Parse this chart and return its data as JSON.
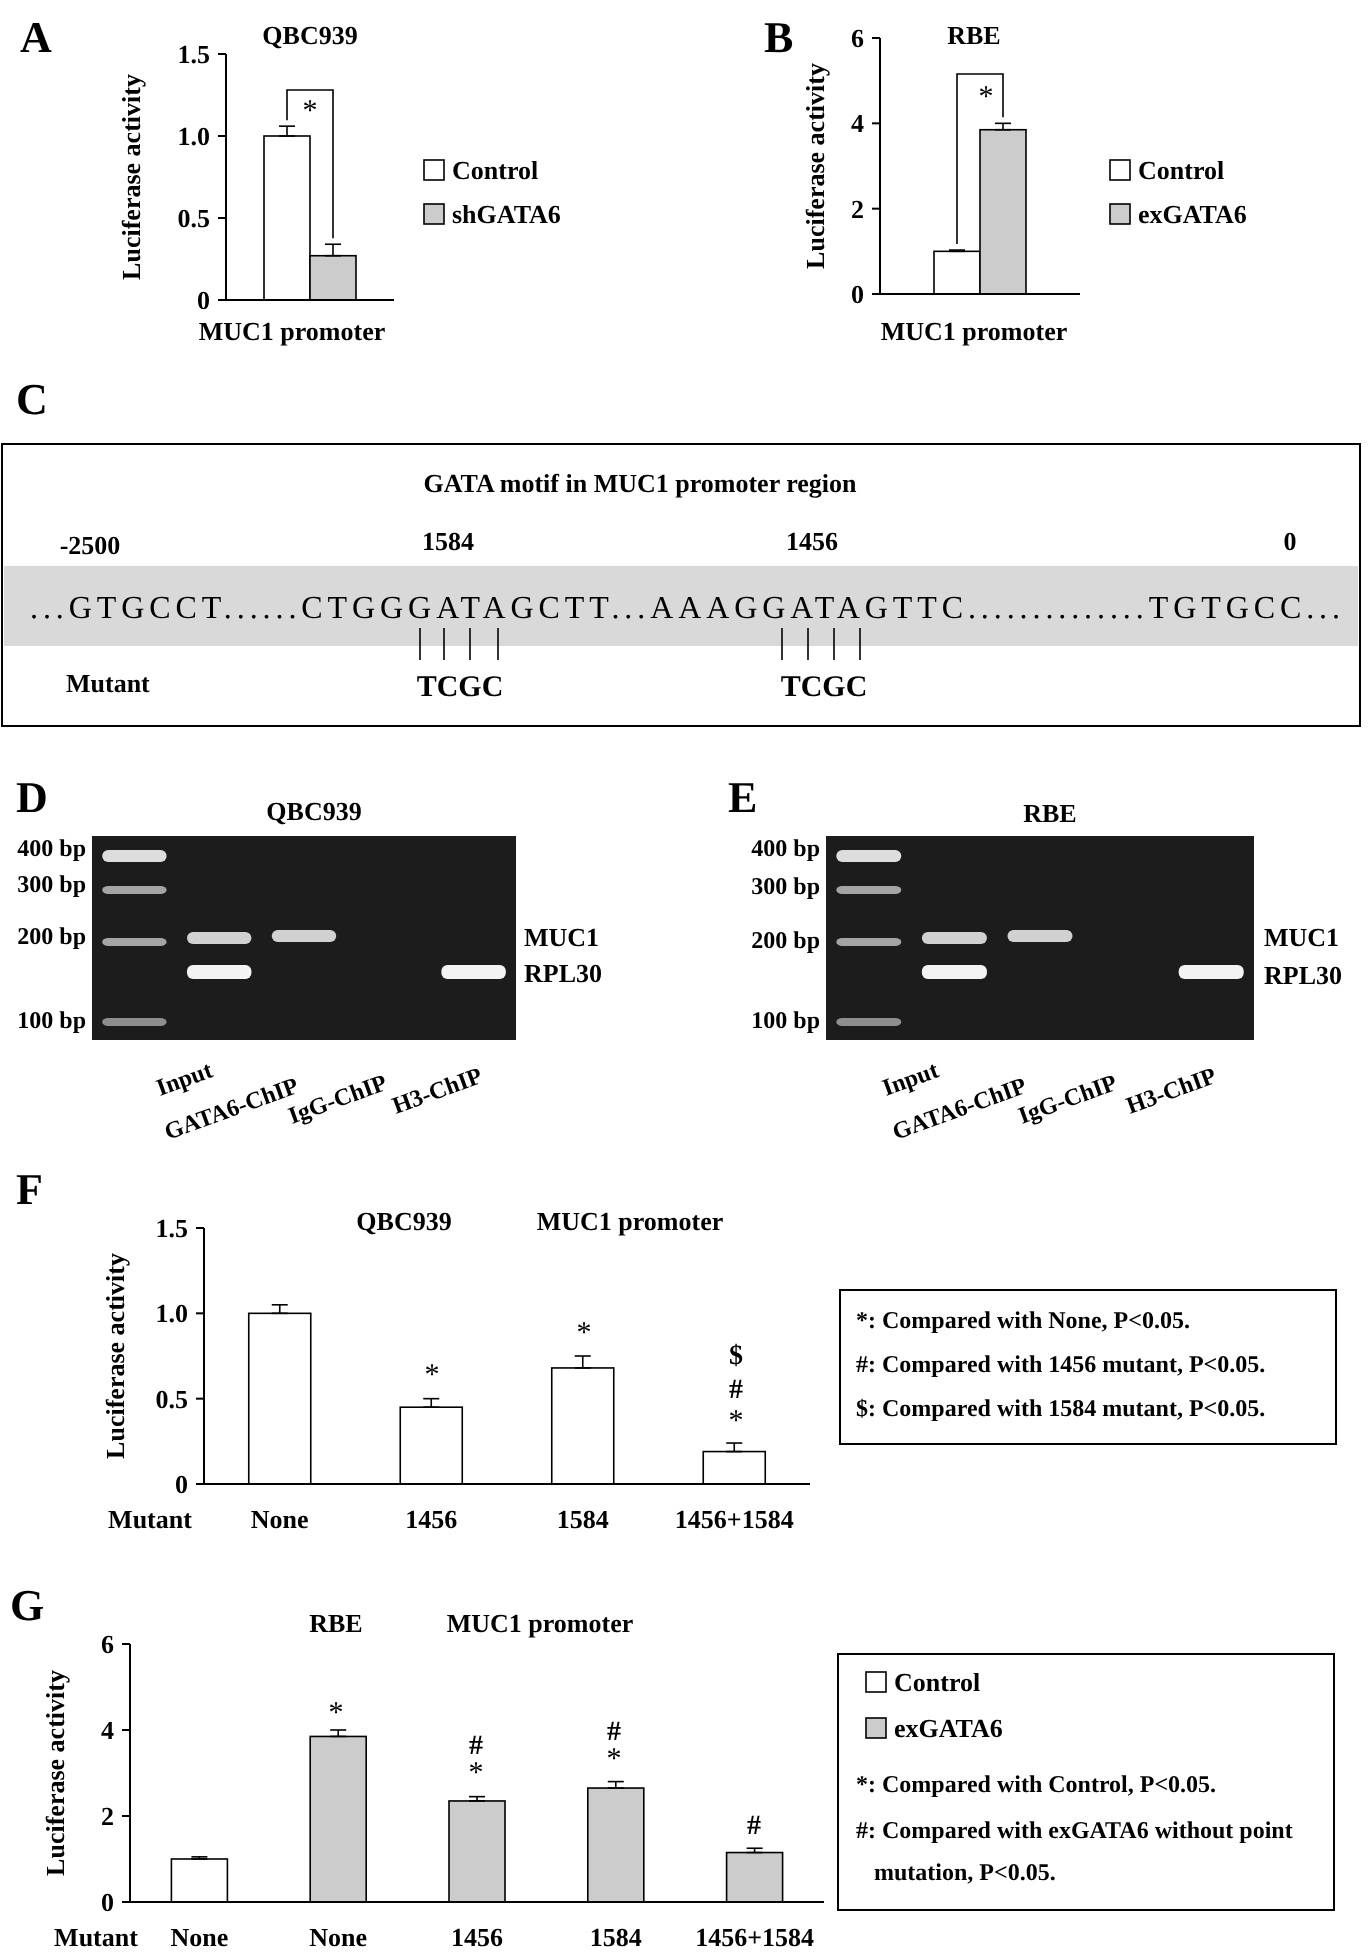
{
  "chart_data": [
    {
      "type": "bar",
      "title": "QBC939",
      "xlabel": "MUC1 promoter",
      "ylabel": "Luciferase activity",
      "categories": [
        null
      ],
      "series": [
        {
          "name": "Control",
          "color": "#ffffff",
          "values": [
            1.0
          ],
          "errors": [
            [
              1.0,
              1.06
            ]
          ]
        },
        {
          "name": "shGATA6",
          "color": "#cccccc",
          "values": [
            0.27
          ],
          "errors": [
            [
              0.27,
              0.34
            ]
          ]
        }
      ],
      "ylim": [
        0,
        1.5
      ],
      "yticks": [
        0,
        {
          "value": 0.5,
          "label": "0.5"
        },
        {
          "value": 1,
          "label": "1.0"
        },
        {
          "value": 1.5,
          "label": "1.5"
        }
      ],
      "legend": "right",
      "annotations": [
        "A",
        "*"
      ]
    },
    {
      "type": "bar",
      "title": "RBE",
      "xlabel": "MUC1 promoter",
      "ylabel": "Luciferase activity",
      "categories": [
        null
      ],
      "series": [
        {
          "name": "Control",
          "color": "#ffffff",
          "values": [
            1.0
          ],
          "errors": [
            [
              1.0,
              1.03
            ]
          ]
        },
        {
          "name": "exGATA6",
          "color": "#cccccc",
          "values": [
            3.85
          ],
          "errors": [
            [
              3.85,
              4.0
            ]
          ]
        }
      ],
      "ylim": [
        0,
        6
      ],
      "yticks": [
        0,
        2,
        4,
        6
      ],
      "legend": "right",
      "annotations": [
        "B",
        "*"
      ]
    },
    {
      "type": "other",
      "title": "GATA motif in MUC1 promoter region",
      "annotations": [
        "C",
        "-2500",
        "1584",
        "1456",
        "0",
        "...GTGCCT......CTGGGATAGCTT...AAAGGATAGTTC..............TGTGCC...",
        "Mutant",
        "TCGC",
        "TCGC"
      ]
    },
    {
      "type": "other",
      "title": "QBC939",
      "annotations": [
        "D",
        "400 bp",
        "300 bp",
        "200 bp",
        "100 bp",
        "MUC1",
        "RPL30",
        "Input",
        "GATA6-ChIP",
        "IgG-ChIP",
        "H3-ChIP"
      ]
    },
    {
      "type": "other",
      "title": "RBE",
      "annotations": [
        "E",
        "400 bp",
        "300 bp",
        "200 bp",
        "100 bp",
        "MUC1",
        "RPL30",
        "Input",
        "GATA6-ChIP",
        "IgG-ChIP",
        "H3-ChIP"
      ]
    },
    {
      "type": "bar",
      "title": "QBC939",
      "subtitle": "MUC1 promoter",
      "xlabel": "Mutant",
      "ylabel": "Luciferase activity",
      "categories": [
        "None",
        "1456",
        "1584",
        "1456+1584"
      ],
      "series": [
        {
          "color": "#ffffff",
          "values": [
            1.0,
            0.45,
            0.68,
            0.19
          ],
          "errors": [
            [
              1.0,
              1.05
            ],
            [
              0.45,
              0.5
            ],
            [
              0.68,
              0.75
            ],
            [
              0.19,
              0.24
            ]
          ]
        }
      ],
      "ylim": [
        0,
        1.5
      ],
      "yticks": [
        0,
        {
          "value": 0.5,
          "label": "0.5"
        },
        {
          "value": 1,
          "label": "1.0"
        },
        {
          "value": 1.5,
          "label": "1.5"
        }
      ],
      "annotations": [
        "F",
        "*",
        "*",
        "$",
        "#",
        "*",
        "*: Compared with None, P<0.05.",
        "#: Compared with 1456 mutant, P<0.05.",
        "$: Compared with 1584 mutant, P<0.05."
      ]
    },
    {
      "type": "bar",
      "title": "RBE",
      "subtitle": "MUC1 promoter",
      "xlabel": "Mutant",
      "ylabel": "Luciferase activity",
      "categories": [
        "None",
        "None",
        "1456",
        "1584",
        "1456+1584"
      ],
      "series": [
        {
          "name": "Control",
          "color": "#ffffff",
          "values": [
            1.0,
            null,
            null,
            null,
            null
          ],
          "errors": [
            [
              1.0,
              1.05
            ],
            null,
            null,
            null,
            null
          ]
        },
        {
          "name": "exGATA6",
          "color": "#cccccc",
          "values": [
            null,
            3.85,
            2.35,
            2.65,
            1.15
          ],
          "errors": [
            null,
            [
              3.85,
              4.0
            ],
            [
              2.35,
              2.45
            ],
            [
              2.65,
              2.8
            ],
            [
              1.15,
              1.25
            ]
          ]
        }
      ],
      "ylim": [
        0,
        6
      ],
      "yticks": [
        0,
        2,
        4,
        6
      ],
      "legend": "right",
      "annotations": [
        "G",
        "*",
        "#",
        "*",
        "#",
        "*",
        "#",
        "*: Compared with Control, P<0.05.",
        "#: Compared with exGATA6 without point mutation, P<0.05."
      ]
    }
  ]
}
